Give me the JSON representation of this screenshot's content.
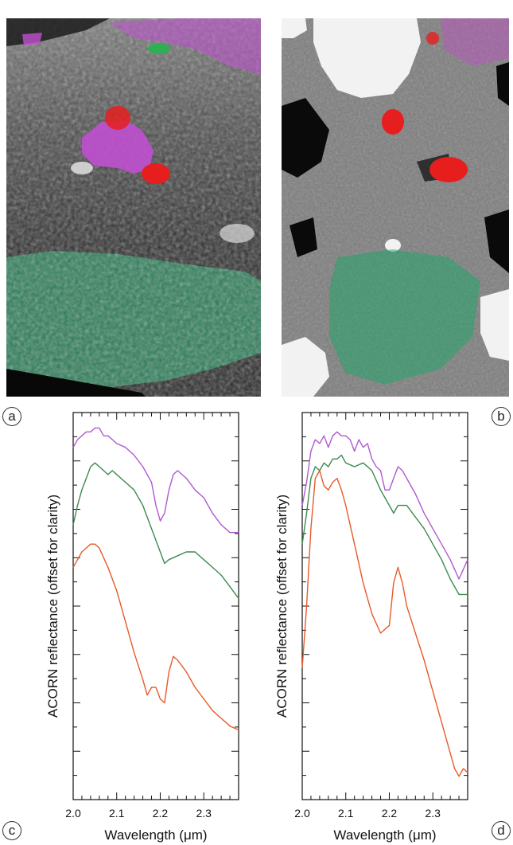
{
  "panel_labels": {
    "a": "a",
    "b": "b",
    "c": "c",
    "d": "d"
  },
  "image_a": {
    "colors": {
      "background": "#202020",
      "vegetation": "#2a8f60",
      "magenta": "#c050d0",
      "red": "#e61e1e",
      "green": "#2fae54"
    }
  },
  "image_b": {
    "colors": {
      "gray": "#7d7d7d",
      "white": "#f2f2f2",
      "black": "#0a0a0a",
      "green": "#1aa868",
      "magenta": "#c050c8",
      "red": "#e61e1e"
    }
  },
  "chart_data": [
    {
      "type": "line",
      "panel": "c",
      "ylabel": "ACORN reflectance (offset for clarity)",
      "xlabel": "Wavelength (μm)",
      "xlim": [
        2.0,
        2.38
      ],
      "ylim": [
        0,
        1
      ],
      "x_ticks": [
        "2.0",
        "2.1",
        "2.2",
        "2.3"
      ],
      "x_tick_values": [
        2.0,
        2.1,
        2.2,
        2.3
      ],
      "y_ticks_labeled": false,
      "series": [
        {
          "color": "#b05ad0",
          "x": [
            2.0,
            2.01,
            2.02,
            2.03,
            2.04,
            2.05,
            2.06,
            2.07,
            2.08,
            2.09,
            2.1,
            2.12,
            2.14,
            2.16,
            2.18,
            2.19,
            2.2,
            2.21,
            2.22,
            2.23,
            2.24,
            2.26,
            2.28,
            2.3,
            2.32,
            2.34,
            2.36,
            2.38
          ],
          "y": [
            0.91,
            0.93,
            0.94,
            0.95,
            0.95,
            0.96,
            0.96,
            0.94,
            0.94,
            0.93,
            0.92,
            0.91,
            0.89,
            0.86,
            0.82,
            0.76,
            0.72,
            0.74,
            0.8,
            0.84,
            0.85,
            0.83,
            0.8,
            0.78,
            0.74,
            0.71,
            0.69,
            0.69
          ]
        },
        {
          "color": "#3c8a50",
          "x": [
            2.0,
            2.01,
            2.02,
            2.03,
            2.04,
            2.05,
            2.06,
            2.07,
            2.08,
            2.09,
            2.1,
            2.12,
            2.14,
            2.16,
            2.18,
            2.2,
            2.21,
            2.22,
            2.24,
            2.26,
            2.28,
            2.3,
            2.32,
            2.34,
            2.36,
            2.38
          ],
          "y": [
            0.71,
            0.76,
            0.8,
            0.83,
            0.86,
            0.87,
            0.86,
            0.85,
            0.84,
            0.85,
            0.84,
            0.82,
            0.8,
            0.76,
            0.7,
            0.64,
            0.61,
            0.62,
            0.63,
            0.64,
            0.64,
            0.62,
            0.6,
            0.58,
            0.55,
            0.52
          ]
        },
        {
          "color": "#e85a2a",
          "x": [
            2.0,
            2.01,
            2.02,
            2.03,
            2.04,
            2.05,
            2.06,
            2.08,
            2.1,
            2.12,
            2.14,
            2.16,
            2.17,
            2.18,
            2.19,
            2.2,
            2.21,
            2.22,
            2.23,
            2.24,
            2.26,
            2.28,
            2.3,
            2.32,
            2.34,
            2.36,
            2.38
          ],
          "y": [
            0.6,
            0.62,
            0.64,
            0.65,
            0.66,
            0.66,
            0.65,
            0.6,
            0.54,
            0.46,
            0.38,
            0.31,
            0.27,
            0.29,
            0.29,
            0.26,
            0.25,
            0.33,
            0.37,
            0.36,
            0.33,
            0.29,
            0.26,
            0.23,
            0.21,
            0.19,
            0.18
          ]
        }
      ]
    },
    {
      "type": "line",
      "panel": "d",
      "ylabel": "ACORN reflectance (offset for clarity)",
      "xlabel": "Wavelength (μm)",
      "xlim": [
        2.0,
        2.38
      ],
      "ylim": [
        0,
        1
      ],
      "x_ticks": [
        "2.0",
        "2.1",
        "2.2",
        "2.3"
      ],
      "x_tick_values": [
        2.0,
        2.1,
        2.2,
        2.3
      ],
      "y_ticks_labeled": false,
      "series": [
        {
          "color": "#b05ad0",
          "x": [
            2.0,
            2.01,
            2.02,
            2.03,
            2.04,
            2.05,
            2.06,
            2.07,
            2.08,
            2.09,
            2.1,
            2.11,
            2.12,
            2.13,
            2.14,
            2.15,
            2.16,
            2.17,
            2.18,
            2.19,
            2.2,
            2.21,
            2.22,
            2.23,
            2.24,
            2.26,
            2.28,
            2.3,
            2.32,
            2.34,
            2.36,
            2.38
          ],
          "y": [
            0.76,
            0.82,
            0.9,
            0.93,
            0.92,
            0.94,
            0.91,
            0.94,
            0.95,
            0.94,
            0.94,
            0.93,
            0.9,
            0.93,
            0.91,
            0.92,
            0.88,
            0.86,
            0.85,
            0.8,
            0.8,
            0.83,
            0.86,
            0.85,
            0.83,
            0.79,
            0.74,
            0.7,
            0.66,
            0.62,
            0.57,
            0.62
          ]
        },
        {
          "color": "#3c8a50",
          "x": [
            2.0,
            2.01,
            2.02,
            2.03,
            2.04,
            2.05,
            2.06,
            2.07,
            2.08,
            2.09,
            2.1,
            2.12,
            2.14,
            2.16,
            2.18,
            2.2,
            2.21,
            2.22,
            2.24,
            2.26,
            2.28,
            2.3,
            2.32,
            2.34,
            2.36,
            2.38
          ],
          "y": [
            0.66,
            0.74,
            0.83,
            0.86,
            0.85,
            0.87,
            0.86,
            0.88,
            0.88,
            0.89,
            0.87,
            0.86,
            0.87,
            0.85,
            0.8,
            0.76,
            0.74,
            0.76,
            0.76,
            0.73,
            0.7,
            0.66,
            0.62,
            0.57,
            0.53,
            0.53
          ]
        },
        {
          "color": "#e85a2a",
          "x": [
            2.0,
            2.01,
            2.02,
            2.03,
            2.04,
            2.05,
            2.06,
            2.07,
            2.08,
            2.09,
            2.1,
            2.12,
            2.14,
            2.16,
            2.18,
            2.2,
            2.21,
            2.22,
            2.23,
            2.24,
            2.26,
            2.28,
            2.3,
            2.32,
            2.34,
            2.35,
            2.36,
            2.37,
            2.38
          ],
          "y": [
            0.34,
            0.5,
            0.7,
            0.83,
            0.85,
            0.81,
            0.8,
            0.82,
            0.83,
            0.8,
            0.76,
            0.66,
            0.56,
            0.48,
            0.43,
            0.45,
            0.56,
            0.6,
            0.56,
            0.5,
            0.43,
            0.36,
            0.28,
            0.2,
            0.12,
            0.08,
            0.06,
            0.08,
            0.07
          ]
        }
      ]
    }
  ]
}
